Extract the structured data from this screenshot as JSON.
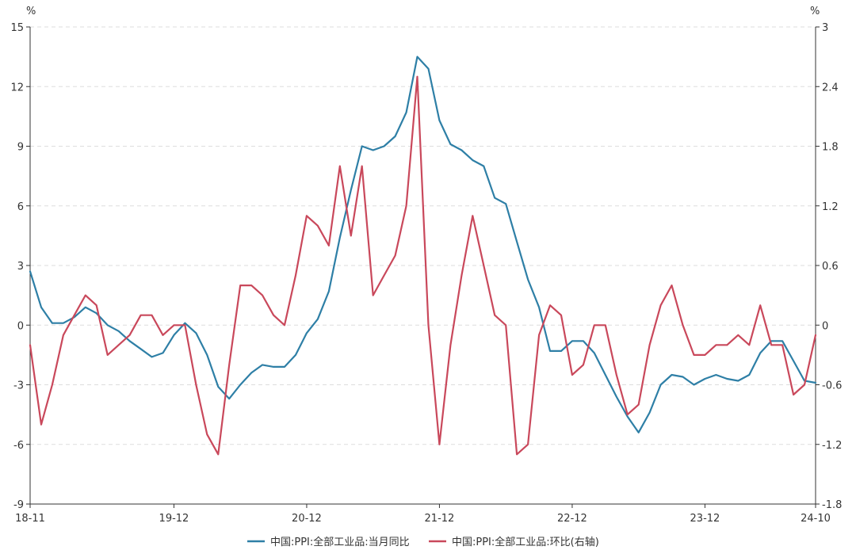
{
  "chart_data": {
    "type": "line",
    "title": "",
    "left_axis": {
      "unit": "%",
      "range": [
        -9,
        15
      ],
      "ticks": [
        "15",
        "12",
        "9",
        "6",
        "3",
        "0",
        "-3",
        "-6",
        "-9"
      ]
    },
    "right_axis": {
      "unit": "%",
      "range": [
        -1.8,
        3
      ],
      "ticks": [
        "3",
        "2.4",
        "1.8",
        "1.2",
        "0.6",
        "0",
        "-0.6",
        "-1.2",
        "-1.8"
      ]
    },
    "x_ticks": [
      "18-11",
      "19-12",
      "20-12",
      "21-12",
      "22-12",
      "23-12",
      "24-10"
    ],
    "x_start": "2018-11",
    "x_end": "2024-10",
    "grid": true,
    "legend_position": "bottom-center",
    "series": [
      {
        "name": "中国:PPI:全部工业品:当月同比",
        "axis": "left",
        "color": "#2e7fa6",
        "values": [
          2.7,
          0.9,
          0.1,
          0.1,
          0.4,
          0.9,
          0.6,
          0.0,
          -0.3,
          -0.8,
          -1.2,
          -1.6,
          -1.4,
          -0.5,
          0.1,
          -0.4,
          -1.5,
          -3.1,
          -3.7,
          -3.0,
          -2.4,
          -2.0,
          -2.1,
          -2.1,
          -1.5,
          -0.4,
          0.3,
          1.7,
          4.4,
          6.8,
          9.0,
          8.8,
          9.0,
          9.5,
          10.7,
          13.5,
          12.9,
          10.3,
          9.1,
          8.8,
          8.3,
          8.0,
          6.4,
          6.1,
          4.2,
          2.3,
          0.9,
          -1.3,
          -1.3,
          -0.8,
          -0.8,
          -1.4,
          -2.5,
          -3.6,
          -4.6,
          -5.4,
          -4.4,
          -3.0,
          -2.5,
          -2.6,
          -3.0,
          -2.7,
          -2.5,
          -2.7,
          -2.8,
          -2.5,
          -1.4,
          -0.8,
          -0.8,
          -1.8,
          -2.8,
          -2.9
        ]
      },
      {
        "name": "中国:PPI:全部工业品:环比(右轴)",
        "axis": "right",
        "color": "#c9485b",
        "values": [
          -0.2,
          -1.0,
          -0.6,
          -0.1,
          0.1,
          0.3,
          0.2,
          -0.3,
          -0.2,
          -0.1,
          0.1,
          0.1,
          -0.1,
          0.0,
          0.0,
          -0.6,
          -1.1,
          -1.3,
          -0.4,
          0.4,
          0.4,
          0.3,
          0.1,
          0.0,
          0.5,
          1.1,
          1.0,
          0.8,
          1.6,
          0.9,
          1.6,
          0.3,
          0.5,
          0.7,
          1.2,
          2.5,
          0.0,
          -1.2,
          -0.2,
          0.5,
          1.1,
          0.6,
          0.1,
          0.0,
          -1.3,
          -1.2,
          -0.1,
          0.2,
          0.1,
          -0.5,
          -0.4,
          0.0,
          0.0,
          -0.5,
          -0.9,
          -0.8,
          -0.2,
          0.2,
          0.4,
          0.0,
          -0.3,
          -0.3,
          -0.2,
          -0.2,
          -0.1,
          -0.2,
          0.2,
          -0.2,
          -0.2,
          -0.7,
          -0.6,
          -0.1
        ]
      }
    ]
  }
}
